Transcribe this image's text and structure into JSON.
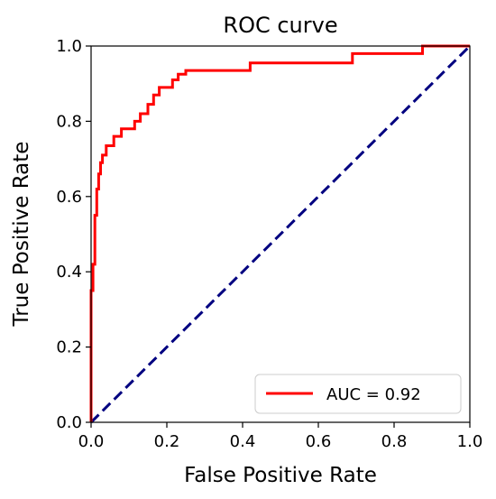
{
  "chart_data": {
    "type": "line",
    "title": "ROC curve",
    "xlabel": "False Positive Rate",
    "ylabel": "True Positive Rate",
    "xlim": [
      0.0,
      1.0
    ],
    "ylim": [
      0.0,
      1.0
    ],
    "x_ticks": [
      0.0,
      0.2,
      0.4,
      0.6,
      0.8,
      1.0
    ],
    "y_ticks": [
      0.0,
      0.2,
      0.4,
      0.6,
      0.8,
      1.0
    ],
    "x_tick_labels": [
      "0.0",
      "0.2",
      "0.4",
      "0.6",
      "0.8",
      "1.0"
    ],
    "y_tick_labels": [
      "0.0",
      "0.2",
      "0.4",
      "0.6",
      "0.8",
      "1.0"
    ],
    "grid": false,
    "legend_position": "lower right",
    "series": [
      {
        "name": "AUC = 0.92",
        "color": "#ff0000",
        "style": "solid",
        "x": [
          0.0,
          0.0,
          0.005,
          0.005,
          0.01,
          0.01,
          0.015,
          0.015,
          0.02,
          0.02,
          0.025,
          0.025,
          0.03,
          0.03,
          0.04,
          0.04,
          0.06,
          0.06,
          0.08,
          0.08,
          0.115,
          0.115,
          0.13,
          0.13,
          0.15,
          0.15,
          0.165,
          0.165,
          0.18,
          0.18,
          0.215,
          0.215,
          0.23,
          0.23,
          0.25,
          0.25,
          0.42,
          0.42,
          0.69,
          0.69,
          0.875,
          0.875,
          1.0
        ],
        "y": [
          0.0,
          0.35,
          0.35,
          0.42,
          0.42,
          0.55,
          0.55,
          0.62,
          0.62,
          0.66,
          0.66,
          0.69,
          0.69,
          0.71,
          0.71,
          0.735,
          0.735,
          0.76,
          0.76,
          0.78,
          0.78,
          0.8,
          0.8,
          0.82,
          0.82,
          0.845,
          0.845,
          0.87,
          0.87,
          0.89,
          0.89,
          0.91,
          0.91,
          0.925,
          0.925,
          0.935,
          0.935,
          0.955,
          0.955,
          0.98,
          0.98,
          1.0,
          1.0
        ]
      },
      {
        "name": "",
        "color": "#000080",
        "style": "dashed",
        "x": [
          0.0,
          1.0
        ],
        "y": [
          0.0,
          1.0
        ]
      }
    ]
  }
}
